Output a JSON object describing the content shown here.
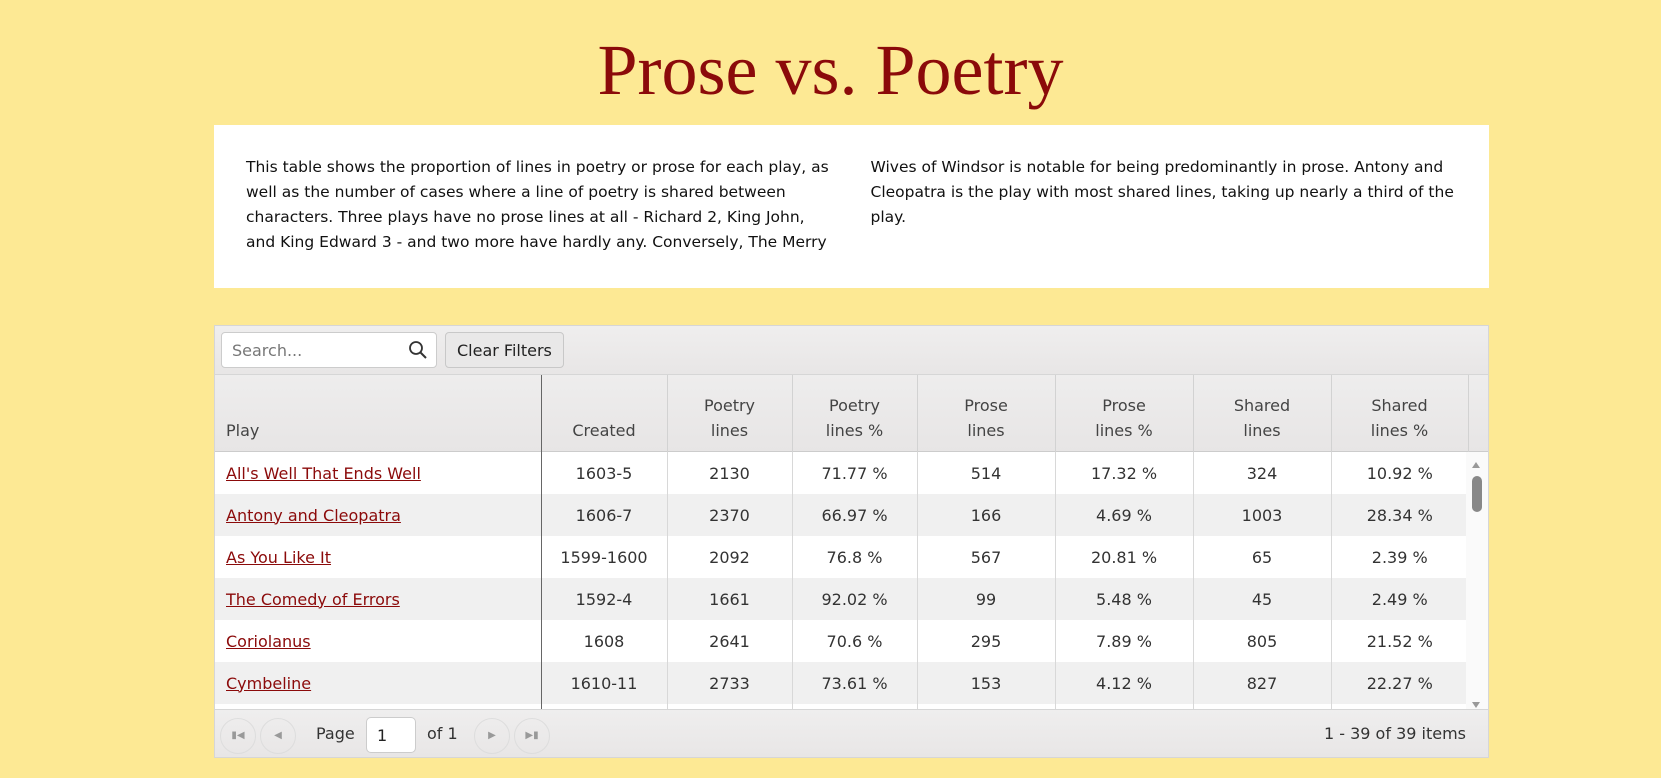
{
  "title": "Prose vs. Poetry",
  "intro": "This table shows the proportion of lines in poetry or prose for each play, as well as the number of cases where a line of poetry is shared between characters. Three plays have no prose lines at all - Richard 2, King John, and King Edward 3 - and two more have hardly any. Conversely, The Merry Wives of Windsor is notable for being predominantly in prose. Antony and Cleopatra is the play with most shared lines, taking up nearly a third of the play.",
  "toolbar": {
    "search_placeholder": "Search...",
    "clear_label": "Clear Filters"
  },
  "columns": [
    "Play",
    "Created",
    "Poetry\nlines",
    "Poetry\nlines %",
    "Prose\nlines",
    "Prose\nlines %",
    "Shared\nlines",
    "Shared\nlines %"
  ],
  "rows": [
    [
      "All's Well That Ends Well",
      "1603-5",
      "2130",
      "71.77 %",
      "514",
      "17.32 %",
      "324",
      "10.92 %"
    ],
    [
      "Antony and Cleopatra",
      "1606-7",
      "2370",
      "66.97 %",
      "166",
      "4.69 %",
      "1003",
      "28.34 %"
    ],
    [
      "As You Like It",
      "1599-1600",
      "2092",
      "76.8 %",
      "567",
      "20.81 %",
      "65",
      "2.39 %"
    ],
    [
      "The Comedy of Errors",
      "1592-4",
      "1661",
      "92.02 %",
      "99",
      "5.48 %",
      "45",
      "2.49 %"
    ],
    [
      "Coriolanus",
      "1608",
      "2641",
      "70.6 %",
      "295",
      "7.89 %",
      "805",
      "21.52 %"
    ],
    [
      "Cymbeline",
      "1610-11",
      "2733",
      "73.61 %",
      "153",
      "4.12 %",
      "827",
      "22.27 %"
    ]
  ],
  "pager": {
    "page_label": "Page",
    "page_value": "1",
    "of_label": "of 1",
    "info": "1 - 39 of 39 items"
  },
  "colors": {
    "background": "#fde994",
    "accent": "#8b0a0a"
  }
}
